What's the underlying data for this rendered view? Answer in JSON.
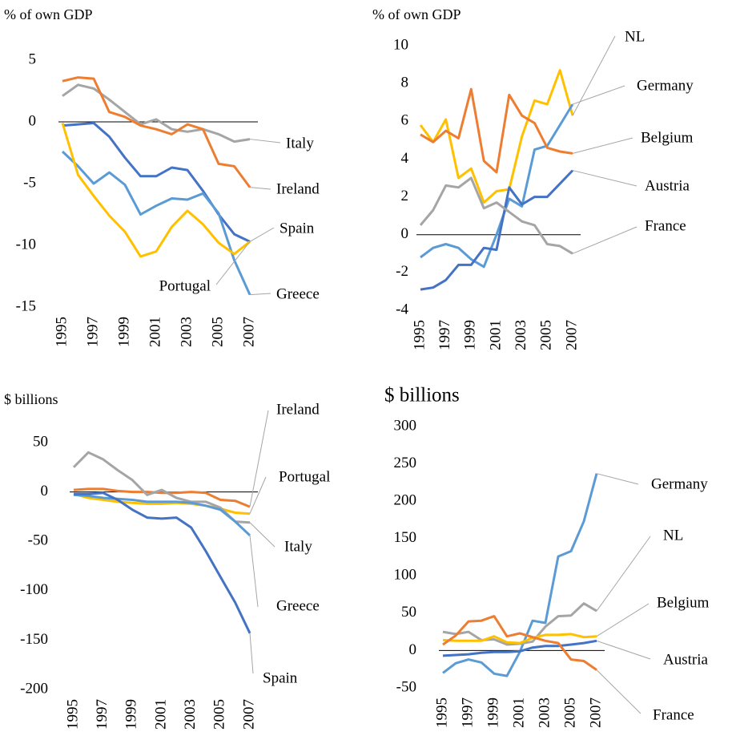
{
  "chart_data": [
    {
      "type": "line",
      "title": "% of own GDP",
      "categories": [
        "1995",
        null,
        "1997",
        null,
        "1999",
        null,
        "2001",
        null,
        "2003",
        null,
        "2005",
        null,
        "2007"
      ],
      "ylim": [
        -15,
        5
      ],
      "yticks": [
        5,
        0,
        -5,
        -10,
        -15
      ],
      "series": [
        {
          "name": "Italy",
          "color": "#a5a5a5",
          "values": [
            2.1,
            3.0,
            2.7,
            1.8,
            0.8,
            -0.2,
            0.2,
            -0.6,
            -0.8,
            -0.6,
            -1.0,
            -1.6,
            -1.4
          ]
        },
        {
          "name": "Ireland",
          "color": "#ed7d31",
          "values": [
            3.3,
            3.6,
            3.5,
            0.8,
            0.4,
            -0.3,
            -0.6,
            -1.0,
            -0.2,
            -0.6,
            -3.4,
            -3.6,
            -5.3
          ]
        },
        {
          "name": "Spain",
          "color": "#4472c4",
          "values": [
            -0.3,
            -0.2,
            -0.1,
            -1.2,
            -2.9,
            -4.4,
            -4.4,
            -3.7,
            -3.9,
            -5.6,
            -7.5,
            -9.1,
            -9.7
          ]
        },
        {
          "name": "Greece",
          "color": "#5b9bd5",
          "values": [
            -2.4,
            -3.6,
            -5.0,
            -4.1,
            -5.1,
            -7.5,
            -6.8,
            -6.2,
            -6.3,
            -5.8,
            -7.4,
            -11.2,
            -14.0
          ]
        },
        {
          "name": "Portugal",
          "color": "#ffc000",
          "values": [
            -0.1,
            -4.3,
            -6.0,
            -7.6,
            -8.9,
            -10.9,
            -10.5,
            -8.5,
            -7.2,
            -8.3,
            -9.8,
            -10.7,
            -9.7
          ]
        }
      ]
    },
    {
      "type": "line",
      "title": "% of own GDP",
      "categories": [
        "1995",
        null,
        "1997",
        null,
        "1999",
        null,
        "2001",
        null,
        "2003",
        null,
        "2005",
        null,
        "2007"
      ],
      "ylim": [
        -4,
        10
      ],
      "yticks": [
        10,
        8,
        6,
        4,
        2,
        0,
        -2,
        -4
      ],
      "series": [
        {
          "name": "NL",
          "color": "#ffc000",
          "values": [
            5.8,
            4.9,
            6.1,
            3.0,
            3.5,
            1.7,
            2.3,
            2.4,
            5.2,
            7.1,
            6.9,
            8.7,
            6.3
          ]
        },
        {
          "name": "Germany",
          "color": "#5b9bd5",
          "values": [
            -1.2,
            -0.7,
            -0.5,
            -0.7,
            -1.3,
            -1.7,
            0.0,
            1.9,
            1.5,
            4.5,
            4.7,
            5.8,
            6.9
          ]
        },
        {
          "name": "Belgium",
          "color": "#ed7d31",
          "values": [
            5.3,
            4.9,
            5.5,
            5.1,
            7.7,
            3.9,
            3.3,
            7.4,
            6.3,
            5.9,
            4.6,
            4.4,
            4.3
          ]
        },
        {
          "name": "Austria",
          "color": "#4472c4",
          "values": [
            -2.9,
            -2.8,
            -2.4,
            -1.6,
            -1.6,
            -0.7,
            -0.8,
            2.5,
            1.6,
            2.0,
            2.0,
            2.7,
            3.4
          ]
        },
        {
          "name": "France",
          "color": "#a5a5a5",
          "values": [
            0.5,
            1.3,
            2.6,
            2.5,
            3.0,
            1.4,
            1.7,
            1.2,
            0.7,
            0.5,
            -0.5,
            -0.6,
            -1.0
          ]
        }
      ]
    },
    {
      "type": "line",
      "title": "$ billions",
      "categories": [
        "1995",
        null,
        "1997",
        null,
        "1999",
        null,
        "2001",
        null,
        "2003",
        null,
        "2005",
        null,
        "2007"
      ],
      "ylim": [
        -200,
        50
      ],
      "yticks": [
        50,
        0,
        -50,
        -100,
        -150,
        -200
      ],
      "series": [
        {
          "name": "Ireland",
          "color": "#ed7d31",
          "values": [
            2,
            3,
            3,
            1,
            0,
            0,
            -1,
            -1,
            0,
            -1,
            -8,
            -9,
            -15
          ]
        },
        {
          "name": "Portugal",
          "color": "#ffc000",
          "values": [
            -2,
            -6,
            -8,
            -10,
            -11,
            -12,
            -12,
            -11,
            -12,
            -14,
            -17,
            -21,
            -22
          ]
        },
        {
          "name": "Italy",
          "color": "#a5a5a5",
          "values": [
            25,
            40,
            33,
            22,
            12,
            -3,
            2,
            -6,
            -10,
            -10,
            -16,
            -30,
            -31
          ]
        },
        {
          "name": "Greece",
          "color": "#5b9bd5",
          "values": [
            -3,
            -4,
            -6,
            -7,
            -8,
            -10,
            -10,
            -10,
            -11,
            -14,
            -18,
            -30,
            -44
          ]
        },
        {
          "name": "Spain",
          "color": "#4472c4",
          "values": [
            -2,
            -2,
            -1,
            -8,
            -18,
            -26,
            -27,
            -26,
            -36,
            -60,
            -86,
            -112,
            -143
          ]
        }
      ]
    },
    {
      "type": "line",
      "title": "$ billions",
      "categories": [
        "1995",
        null,
        "1997",
        null,
        "1999",
        null,
        "2001",
        null,
        "2003",
        null,
        "2005",
        null,
        "2007"
      ],
      "ylim": [
        -50,
        300
      ],
      "yticks": [
        300,
        250,
        200,
        150,
        100,
        50,
        0,
        -50
      ],
      "series": [
        {
          "name": "Germany",
          "color": "#5b9bd5",
          "values": [
            -30,
            -17,
            -12,
            -16,
            -31,
            -34,
            -2,
            40,
            37,
            126,
            133,
            173,
            237
          ]
        },
        {
          "name": "NL",
          "color": "#a5a5a5",
          "values": [
            25,
            22,
            25,
            14,
            15,
            8,
            9,
            12,
            32,
            46,
            47,
            63,
            53
          ]
        },
        {
          "name": "Belgium",
          "color": "#ffc000",
          "values": [
            14,
            13,
            13,
            13,
            19,
            11,
            10,
            17,
            21,
            21,
            22,
            18,
            19
          ]
        },
        {
          "name": "Austria",
          "color": "#4472c4",
          "values": [
            -7,
            -6,
            -5,
            -3,
            -2,
            -2,
            -1,
            4,
            6,
            6,
            8,
            10,
            13
          ]
        },
        {
          "name": "France",
          "color": "#ed7d31",
          "values": [
            8,
            20,
            39,
            40,
            46,
            19,
            23,
            18,
            13,
            10,
            -12,
            -14,
            -26
          ]
        }
      ]
    }
  ]
}
